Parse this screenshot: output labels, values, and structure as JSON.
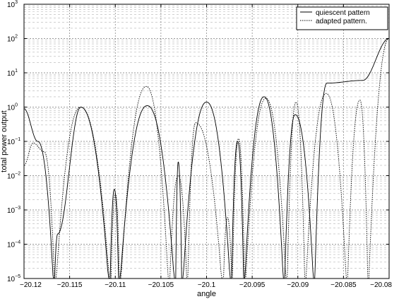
{
  "chart_data": {
    "type": "line",
    "title": "",
    "xlabel": "angle",
    "ylabel": "total power output",
    "xlim": [
      -20.12,
      -20.08
    ],
    "ylim": [
      1e-05,
      1000
    ],
    "yscale": "log",
    "grid": true,
    "legend_position": "top-right",
    "x_ticks": [
      {
        "value": -20.12,
        "label": "−20.12"
      },
      {
        "value": -20.115,
        "label": "−20.115"
      },
      {
        "value": -20.11,
        "label": "−20.11"
      },
      {
        "value": -20.105,
        "label": "−20.105"
      },
      {
        "value": -20.1,
        "label": "−20.1"
      },
      {
        "value": -20.095,
        "label": "−20.095"
      },
      {
        "value": -20.09,
        "label": "−20.09"
      },
      {
        "value": -20.085,
        "label": "−20.085"
      },
      {
        "value": -20.08,
        "label": "−20.08"
      }
    ],
    "y_ticks": [
      {
        "value": 1e-05,
        "base": "10",
        "exp": "−5"
      },
      {
        "value": 0.0001,
        "base": "10",
        "exp": "−4"
      },
      {
        "value": 0.001,
        "base": "10",
        "exp": "−3"
      },
      {
        "value": 0.01,
        "base": "10",
        "exp": "−2"
      },
      {
        "value": 0.1,
        "base": "10",
        "exp": "−1"
      },
      {
        "value": 1,
        "base": "10",
        "exp": "0"
      },
      {
        "value": 10,
        "base": "10",
        "exp": "1"
      },
      {
        "value": 100,
        "base": "10",
        "exp": "2"
      },
      {
        "value": 1000,
        "base": "10",
        "exp": "3"
      }
    ],
    "series": [
      {
        "name": "quiescent pattern",
        "style": "solid",
        "color": "#000000",
        "nulls": [
          -20.1167,
          -20.1106,
          -20.1096,
          -20.1034,
          -20.1027,
          -20.0973,
          -20.0959,
          -20.0915,
          -20.0882
        ],
        "peaks": [
          {
            "x": -20.12,
            "y": 0.9
          },
          {
            "x": -20.1185,
            "y": 0.1
          },
          {
            "x": -20.1163,
            "y": 0.0002
          },
          {
            "x": -20.1138,
            "y": 1.0
          },
          {
            "x": -20.1101,
            "y": 0.004
          },
          {
            "x": -20.1065,
            "y": 1.1
          },
          {
            "x": -20.1031,
            "y": 0.025
          },
          {
            "x": -20.1,
            "y": 1.4
          },
          {
            "x": -20.0966,
            "y": 0.1
          },
          {
            "x": -20.0937,
            "y": 2.0
          },
          {
            "x": -20.0903,
            "y": 0.6
          },
          {
            "x": -20.0868,
            "y": 5.0
          },
          {
            "x": -20.0829,
            "y": 6.0
          },
          {
            "x": -20.08,
            "y": 100
          }
        ]
      },
      {
        "name": "adapted pattern.",
        "style": "dotted",
        "color": "#000000",
        "nulls": [
          -20.1166,
          -20.1105,
          -20.1095,
          -20.1041,
          -20.1021,
          -20.0982,
          -20.0972,
          -20.0958,
          -20.0912,
          -20.0892,
          -20.0846,
          -20.0823
        ],
        "peaks": [
          {
            "x": -20.12,
            "y": 0.02
          },
          {
            "x": -20.119,
            "y": 0.09
          },
          {
            "x": -20.1178,
            "y": 0.05
          },
          {
            "x": -20.1138,
            "y": 1.0
          },
          {
            "x": -20.11,
            "y": 0.003
          },
          {
            "x": -20.1066,
            "y": 4.0
          },
          {
            "x": -20.1031,
            "y": 0.01
          },
          {
            "x": -20.1012,
            "y": 0.35
          },
          {
            "x": -20.0977,
            "y": 0.0006
          },
          {
            "x": -20.0965,
            "y": 0.12
          },
          {
            "x": -20.0935,
            "y": 1.8
          },
          {
            "x": -20.0902,
            "y": 1.4
          },
          {
            "x": -20.0869,
            "y": 2.5
          },
          {
            "x": -20.0832,
            "y": 1.6
          },
          {
            "x": -20.08,
            "y": 100
          }
        ]
      }
    ]
  }
}
